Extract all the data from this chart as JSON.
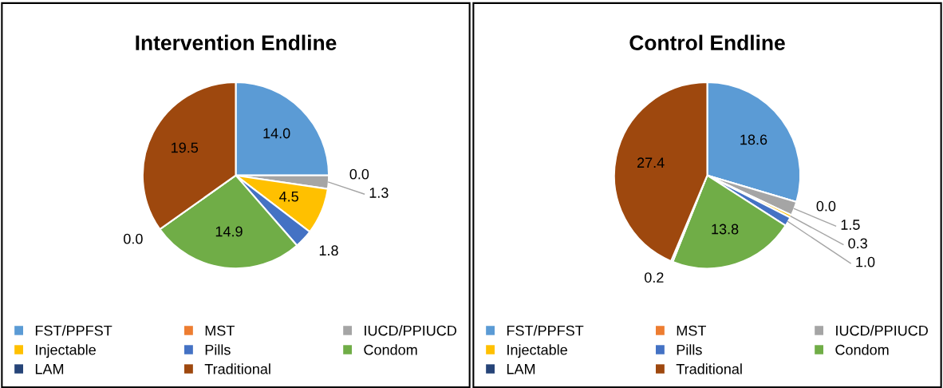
{
  "chart_data": [
    {
      "type": "pie",
      "title": "Intervention Endline",
      "categories": [
        "FST/PPFST",
        "MST",
        "IUCD/PPIUCD",
        "Injectable",
        "Pills",
        "Condom",
        "LAM",
        "Traditional"
      ],
      "values": [
        14.0,
        0.0,
        1.3,
        4.5,
        1.8,
        14.9,
        0.0,
        19.5
      ],
      "value_labels": [
        "14.0",
        "0.0",
        "1.3",
        "4.5",
        "1.8",
        "14.9",
        "0.0",
        "19.5"
      ],
      "colors": [
        "#5b9bd5",
        "#ed7d31",
        "#a5a5a5",
        "#ffc000",
        "#4472c4",
        "#70ad47",
        "#264478",
        "#9e480e"
      ],
      "legend": "bottom"
    },
    {
      "type": "pie",
      "title": "Control Endline",
      "categories": [
        "FST/PPFST",
        "MST",
        "IUCD/PPIUCD",
        "Injectable",
        "Pills",
        "Condom",
        "LAM",
        "Traditional"
      ],
      "values": [
        18.6,
        0.0,
        1.5,
        0.3,
        1.0,
        13.8,
        0.2,
        27.4
      ],
      "value_labels": [
        "18.6",
        "0.0",
        "1.5",
        "0.3",
        "1.0",
        "13.8",
        "0.2",
        "27.4"
      ],
      "colors": [
        "#5b9bd5",
        "#ed7d31",
        "#a5a5a5",
        "#ffc000",
        "#4472c4",
        "#70ad47",
        "#264478",
        "#9e480e"
      ],
      "legend": "bottom"
    }
  ]
}
